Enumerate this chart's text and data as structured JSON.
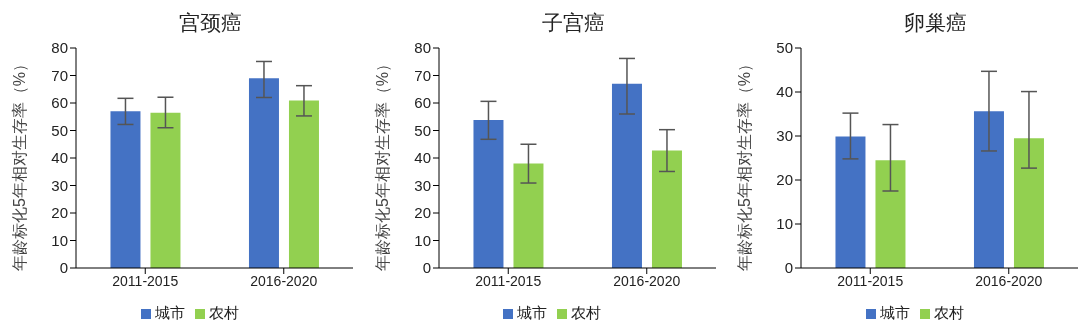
{
  "chart_data": [
    {
      "type": "bar",
      "title": "宫颈癌",
      "ylabel": "年龄标化5年相对生存率（%）",
      "categories": [
        "2011-2015",
        "2016-2020"
      ],
      "ylim": [
        0,
        80
      ],
      "yticks": [
        0,
        10,
        20,
        30,
        40,
        50,
        60,
        70,
        80
      ],
      "grid": false,
      "legend": "bottom",
      "series": [
        {
          "name": "城市",
          "color": "#4472c4",
          "values": [
            57.0,
            69.0
          ],
          "errors": [
            [
              52.2,
              61.7
            ],
            [
              62.0,
              75.1
            ]
          ]
        },
        {
          "name": "农村",
          "color": "#92d050",
          "values": [
            56.5,
            60.9
          ],
          "errors": [
            [
              51.0,
              62.1
            ],
            [
              55.3,
              66.3
            ]
          ]
        }
      ]
    },
    {
      "type": "bar",
      "title": "子宫癌",
      "ylabel": "年龄标化5年相对生存率（%）",
      "categories": [
        "2011-2015",
        "2016-2020"
      ],
      "ylim": [
        0,
        80
      ],
      "yticks": [
        0,
        10,
        20,
        30,
        40,
        50,
        60,
        70,
        80
      ],
      "grid": false,
      "legend": "bottom",
      "series": [
        {
          "name": "城市",
          "color": "#4472c4",
          "values": [
            53.8,
            67.0
          ],
          "errors": [
            [
              46.8,
              60.6
            ],
            [
              56.0,
              76.2
            ]
          ]
        },
        {
          "name": "农村",
          "color": "#92d050",
          "values": [
            38.0,
            42.7
          ],
          "errors": [
            [
              30.9,
              45.0
            ],
            [
              35.1,
              50.3
            ]
          ]
        }
      ]
    },
    {
      "type": "bar",
      "title": "卵巢癌",
      "ylabel": "年龄标化5年相对生存率（%）",
      "categories": [
        "2011-2015",
        "2016-2020"
      ],
      "ylim": [
        0,
        50
      ],
      "yticks": [
        0,
        10,
        20,
        30,
        40,
        50
      ],
      "grid": false,
      "legend": "bottom",
      "series": [
        {
          "name": "城市",
          "color": "#4472c4",
          "values": [
            29.9,
            35.6
          ],
          "errors": [
            [
              24.8,
              35.2
            ],
            [
              26.6,
              44.7
            ]
          ]
        },
        {
          "name": "农村",
          "color": "#92d050",
          "values": [
            24.5,
            29.5
          ],
          "errors": [
            [
              17.5,
              32.6
            ],
            [
              22.7,
              40.1
            ]
          ]
        }
      ]
    }
  ]
}
